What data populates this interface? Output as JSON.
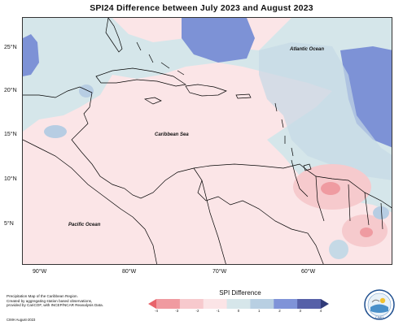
{
  "title": "SPI24 Difference between July 2023 and August 2023",
  "y_labels": [
    "25°N",
    "20°N",
    "15°N",
    "10°N",
    "5°N"
  ],
  "x_labels": [
    "90°W",
    "80°W",
    "70°W",
    "60°W"
  ],
  "ocean_labels": {
    "atlantic": "Atlantic Ocean",
    "caribbean": "Caribbean Sea",
    "pacific": "Pacific Ocean"
  },
  "footer": {
    "line1": "Precipitation Map of the Caribbean Region.",
    "line2": "Created by aggregating station based observations,",
    "line3": "provided by CariCOF, with INCEP/NCAR Reanalysis Data.",
    "date": "CIMH August-2023"
  },
  "legend": {
    "title": "SPI Difference",
    "ticks": [
      "-4",
      "-3",
      "-2",
      "-1",
      "0",
      "1",
      "2",
      "3",
      "4"
    ],
    "colors": [
      "#e8646b",
      "#f09aa0",
      "#f7c9cd",
      "#fbe4e6",
      "#d6e6ea",
      "#b8cfe2",
      "#7f93d8",
      "#5660a8",
      "#303a78"
    ]
  },
  "logo": {
    "text": "CIMH"
  },
  "palette": {
    "neutral_blue": "#d4e5e8",
    "neutral_pink": "#fbe6e8",
    "mid_blue": "#b8cde4",
    "strong_blue": "#7a90d8",
    "pink": "#f6c9cc",
    "red": "#ef9ba1"
  }
}
